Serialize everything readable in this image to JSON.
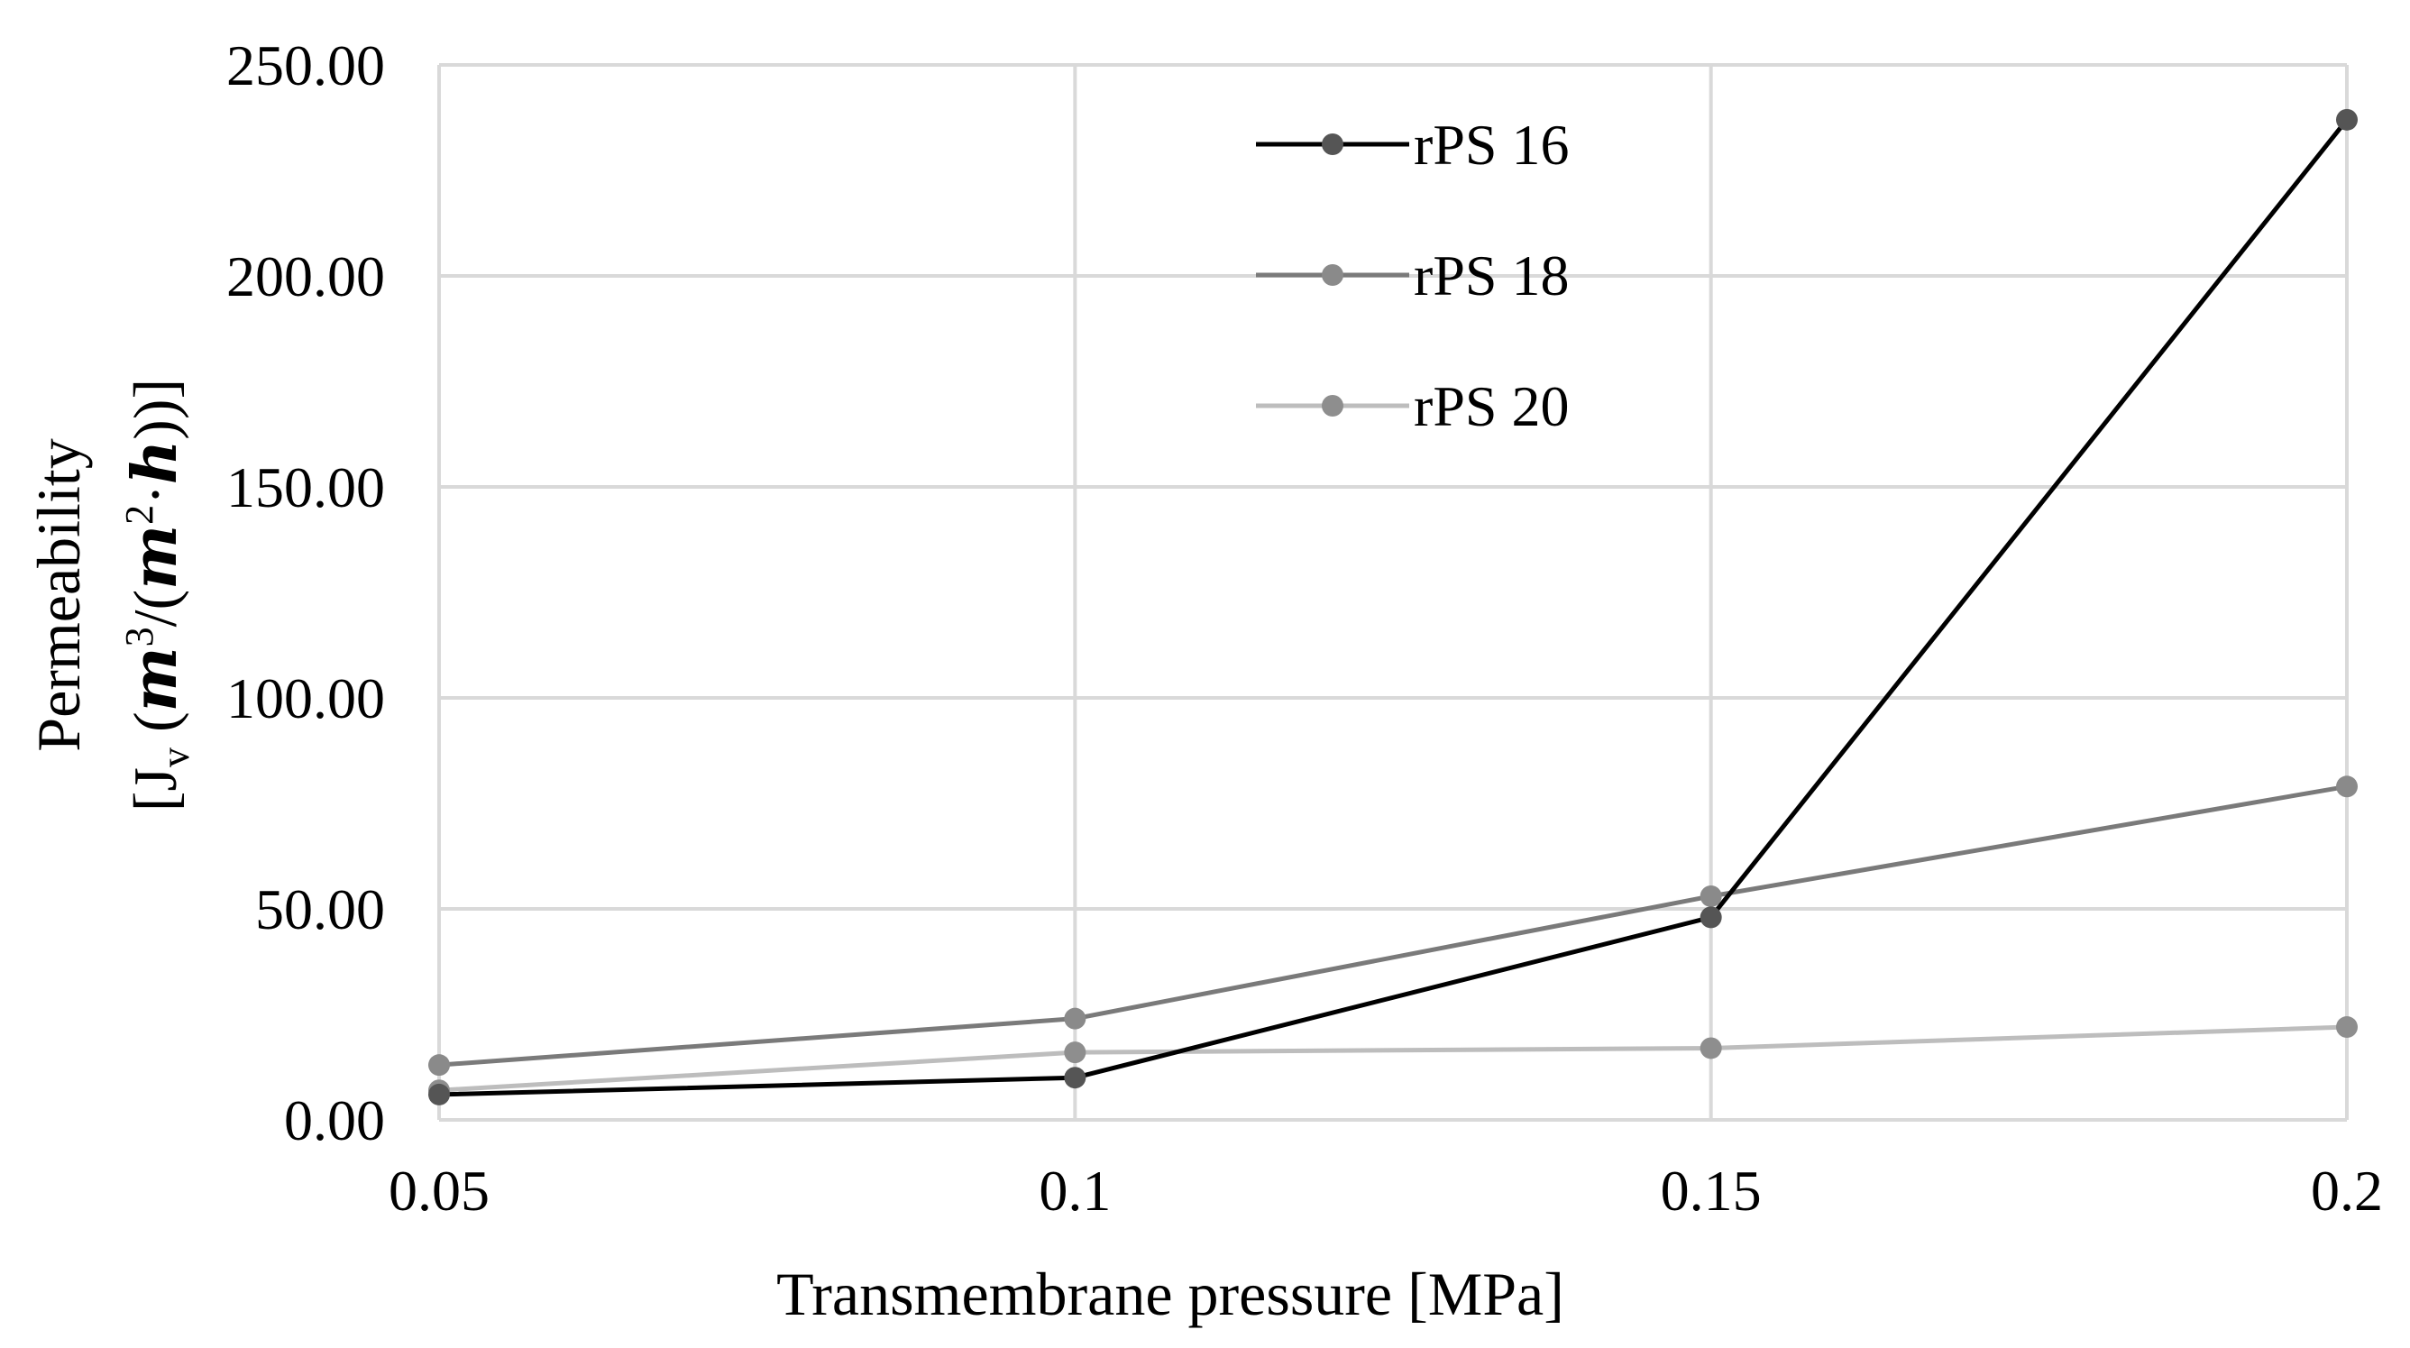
{
  "chart_data": {
    "type": "line",
    "title": "",
    "xlabel": "Transmembrane pressure [MPa]",
    "ylabel_line1": "Permeability",
    "ylabel_line2": {
      "open": "[J",
      "sub": "v",
      "paren_open": " (",
      "m1": "m",
      "exp1": "3",
      "slash": "/(",
      "m2": "m",
      "exp2": "2",
      "dot": "·",
      "h": "h",
      "close": "))]"
    },
    "x": [
      0.05,
      0.1,
      0.15,
      0.2
    ],
    "x_tick_labels": [
      "0.05",
      "0.1",
      "0.15",
      "0.2"
    ],
    "ylim": [
      0,
      250
    ],
    "y_tick_values": [
      0,
      50,
      100,
      150,
      200,
      250
    ],
    "y_tick_labels": [
      "0.00",
      "50.00",
      "100.00",
      "150.00",
      "200.00",
      "250.00"
    ],
    "grid": true,
    "legend_position": "top-center",
    "series": [
      {
        "name": "rPS 16",
        "values": [
          6,
          10,
          48,
          237
        ],
        "color": "#000000",
        "marker_color": "#555555"
      },
      {
        "name": "rPS 18",
        "values": [
          13,
          24,
          53,
          79
        ],
        "color": "#7a7a7a",
        "marker_color": "#8a8a8a"
      },
      {
        "name": "rPS 20",
        "values": [
          7,
          16,
          17,
          22
        ],
        "color": "#bdbdbd",
        "marker_color": "#8e8e8e"
      }
    ]
  }
}
